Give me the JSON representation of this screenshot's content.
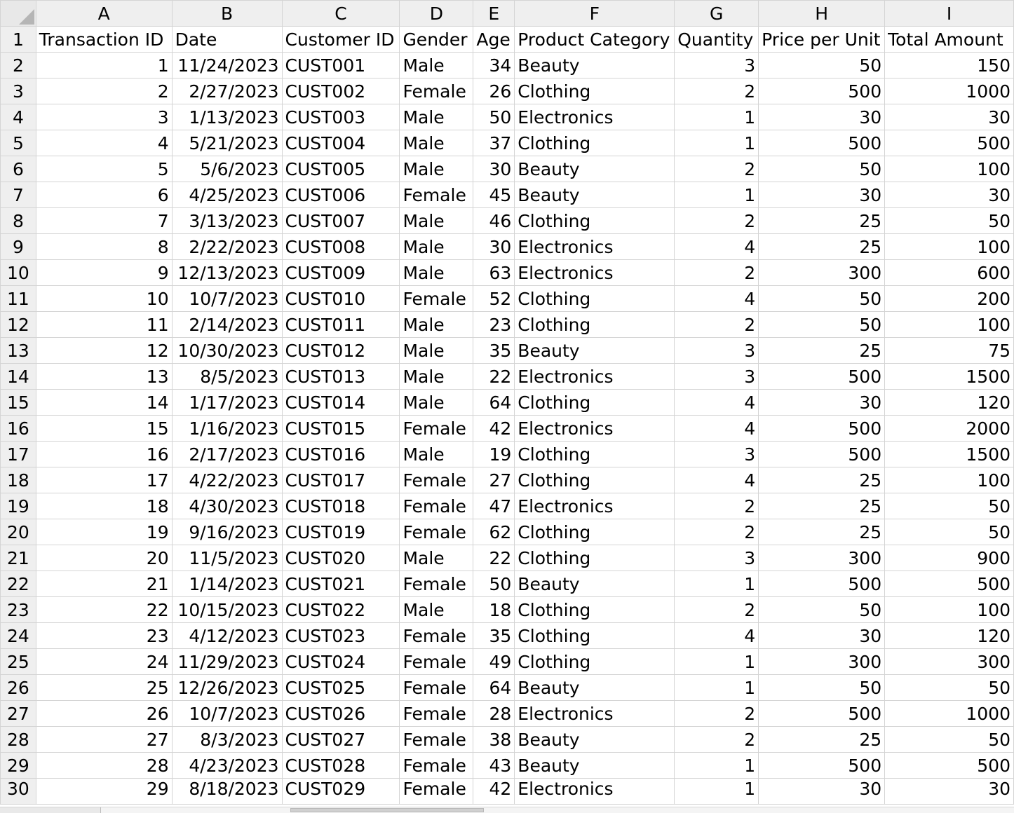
{
  "columns": [
    "A",
    "B",
    "C",
    "D",
    "E",
    "F",
    "G",
    "H",
    "I"
  ],
  "header_row": {
    "number": "1",
    "cells": [
      "Transaction ID",
      "Date",
      "Customer ID",
      "Gender",
      "Age",
      "Product Category",
      "Quantity",
      "Price per Unit",
      "Total Amount"
    ]
  },
  "rows": [
    {
      "n": "2",
      "id": "1",
      "date": "11/24/2023",
      "cust": "CUST001",
      "gender": "Male",
      "age": "34",
      "cat": "Beauty",
      "qty": "3",
      "price": "50",
      "total": "150"
    },
    {
      "n": "3",
      "id": "2",
      "date": "2/27/2023",
      "cust": "CUST002",
      "gender": "Female",
      "age": "26",
      "cat": "Clothing",
      "qty": "2",
      "price": "500",
      "total": "1000"
    },
    {
      "n": "4",
      "id": "3",
      "date": "1/13/2023",
      "cust": "CUST003",
      "gender": "Male",
      "age": "50",
      "cat": "Electronics",
      "qty": "1",
      "price": "30",
      "total": "30"
    },
    {
      "n": "5",
      "id": "4",
      "date": "5/21/2023",
      "cust": "CUST004",
      "gender": "Male",
      "age": "37",
      "cat": "Clothing",
      "qty": "1",
      "price": "500",
      "total": "500"
    },
    {
      "n": "6",
      "id": "5",
      "date": "5/6/2023",
      "cust": "CUST005",
      "gender": "Male",
      "age": "30",
      "cat": "Beauty",
      "qty": "2",
      "price": "50",
      "total": "100"
    },
    {
      "n": "7",
      "id": "6",
      "date": "4/25/2023",
      "cust": "CUST006",
      "gender": "Female",
      "age": "45",
      "cat": "Beauty",
      "qty": "1",
      "price": "30",
      "total": "30"
    },
    {
      "n": "8",
      "id": "7",
      "date": "3/13/2023",
      "cust": "CUST007",
      "gender": "Male",
      "age": "46",
      "cat": "Clothing",
      "qty": "2",
      "price": "25",
      "total": "50"
    },
    {
      "n": "9",
      "id": "8",
      "date": "2/22/2023",
      "cust": "CUST008",
      "gender": "Male",
      "age": "30",
      "cat": "Electronics",
      "qty": "4",
      "price": "25",
      "total": "100"
    },
    {
      "n": "10",
      "id": "9",
      "date": "12/13/2023",
      "cust": "CUST009",
      "gender": "Male",
      "age": "63",
      "cat": "Electronics",
      "qty": "2",
      "price": "300",
      "total": "600"
    },
    {
      "n": "11",
      "id": "10",
      "date": "10/7/2023",
      "cust": "CUST010",
      "gender": "Female",
      "age": "52",
      "cat": "Clothing",
      "qty": "4",
      "price": "50",
      "total": "200"
    },
    {
      "n": "12",
      "id": "11",
      "date": "2/14/2023",
      "cust": "CUST011",
      "gender": "Male",
      "age": "23",
      "cat": "Clothing",
      "qty": "2",
      "price": "50",
      "total": "100"
    },
    {
      "n": "13",
      "id": "12",
      "date": "10/30/2023",
      "cust": "CUST012",
      "gender": "Male",
      "age": "35",
      "cat": "Beauty",
      "qty": "3",
      "price": "25",
      "total": "75"
    },
    {
      "n": "14",
      "id": "13",
      "date": "8/5/2023",
      "cust": "CUST013",
      "gender": "Male",
      "age": "22",
      "cat": "Electronics",
      "qty": "3",
      "price": "500",
      "total": "1500"
    },
    {
      "n": "15",
      "id": "14",
      "date": "1/17/2023",
      "cust": "CUST014",
      "gender": "Male",
      "age": "64",
      "cat": "Clothing",
      "qty": "4",
      "price": "30",
      "total": "120"
    },
    {
      "n": "16",
      "id": "15",
      "date": "1/16/2023",
      "cust": "CUST015",
      "gender": "Female",
      "age": "42",
      "cat": "Electronics",
      "qty": "4",
      "price": "500",
      "total": "2000"
    },
    {
      "n": "17",
      "id": "16",
      "date": "2/17/2023",
      "cust": "CUST016",
      "gender": "Male",
      "age": "19",
      "cat": "Clothing",
      "qty": "3",
      "price": "500",
      "total": "1500"
    },
    {
      "n": "18",
      "id": "17",
      "date": "4/22/2023",
      "cust": "CUST017",
      "gender": "Female",
      "age": "27",
      "cat": "Clothing",
      "qty": "4",
      "price": "25",
      "total": "100"
    },
    {
      "n": "19",
      "id": "18",
      "date": "4/30/2023",
      "cust": "CUST018",
      "gender": "Female",
      "age": "47",
      "cat": "Electronics",
      "qty": "2",
      "price": "25",
      "total": "50"
    },
    {
      "n": "20",
      "id": "19",
      "date": "9/16/2023",
      "cust": "CUST019",
      "gender": "Female",
      "age": "62",
      "cat": "Clothing",
      "qty": "2",
      "price": "25",
      "total": "50"
    },
    {
      "n": "21",
      "id": "20",
      "date": "11/5/2023",
      "cust": "CUST020",
      "gender": "Male",
      "age": "22",
      "cat": "Clothing",
      "qty": "3",
      "price": "300",
      "total": "900"
    },
    {
      "n": "22",
      "id": "21",
      "date": "1/14/2023",
      "cust": "CUST021",
      "gender": "Female",
      "age": "50",
      "cat": "Beauty",
      "qty": "1",
      "price": "500",
      "total": "500"
    },
    {
      "n": "23",
      "id": "22",
      "date": "10/15/2023",
      "cust": "CUST022",
      "gender": "Male",
      "age": "18",
      "cat": "Clothing",
      "qty": "2",
      "price": "50",
      "total": "100"
    },
    {
      "n": "24",
      "id": "23",
      "date": "4/12/2023",
      "cust": "CUST023",
      "gender": "Female",
      "age": "35",
      "cat": "Clothing",
      "qty": "4",
      "price": "30",
      "total": "120"
    },
    {
      "n": "25",
      "id": "24",
      "date": "11/29/2023",
      "cust": "CUST024",
      "gender": "Female",
      "age": "49",
      "cat": "Clothing",
      "qty": "1",
      "price": "300",
      "total": "300"
    },
    {
      "n": "26",
      "id": "25",
      "date": "12/26/2023",
      "cust": "CUST025",
      "gender": "Female",
      "age": "64",
      "cat": "Beauty",
      "qty": "1",
      "price": "50",
      "total": "50"
    },
    {
      "n": "27",
      "id": "26",
      "date": "10/7/2023",
      "cust": "CUST026",
      "gender": "Female",
      "age": "28",
      "cat": "Electronics",
      "qty": "2",
      "price": "500",
      "total": "1000"
    },
    {
      "n": "28",
      "id": "27",
      "date": "8/3/2023",
      "cust": "CUST027",
      "gender": "Female",
      "age": "38",
      "cat": "Beauty",
      "qty": "2",
      "price": "25",
      "total": "50"
    },
    {
      "n": "29",
      "id": "28",
      "date": "4/23/2023",
      "cust": "CUST028",
      "gender": "Female",
      "age": "43",
      "cat": "Beauty",
      "qty": "1",
      "price": "500",
      "total": "500"
    },
    {
      "n": "30",
      "id": "29",
      "date": "8/18/2023",
      "cust": "CUST029",
      "gender": "Female",
      "age": "42",
      "cat": "Electronics",
      "qty": "1",
      "price": "30",
      "total": "30"
    }
  ]
}
